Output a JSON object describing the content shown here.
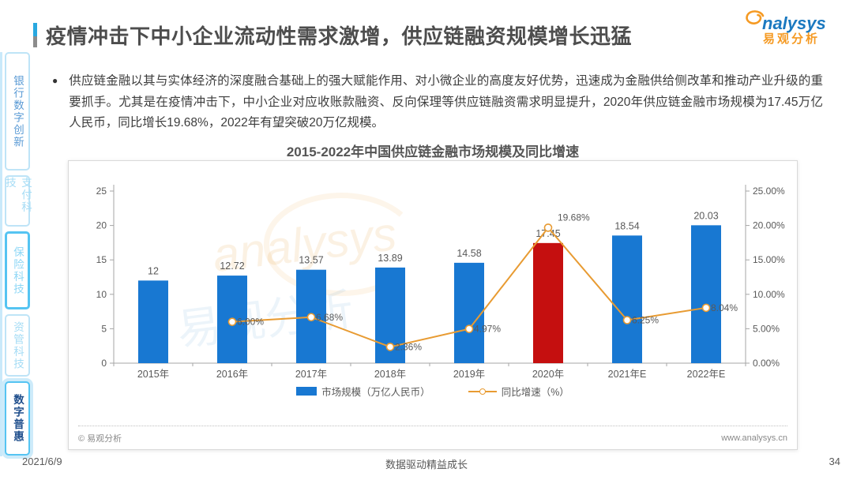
{
  "page": {
    "title": "疫情冲击下中小企业流动性需求激增，供应链融资规模增长迅猛",
    "bullet_text": "供应链金融以其与实体经济的深度融合基础上的强大赋能作用、对小微企业的高度友好优势，迅速成为金融供给侧改革和推动产业升级的重要抓手。尤其是在疫情冲击下，中小企业对应收账款融资、反向保理等供应链融资需求明显提升，2020年供应链金融市场规模为17.45万亿人民币，同比增长19.68%，2022年有望突破20万亿规模。",
    "logo": {
      "brand_latin": "nalysys",
      "brand_cn": "易观分析"
    },
    "chart_footer": {
      "copyright": "© 易观分析",
      "website": "www.analysys.cn"
    },
    "footer": {
      "date": "2021/6/9",
      "slogan": "数据驱动精益成长",
      "page_number": "34"
    }
  },
  "sidebar": {
    "items": [
      {
        "label": "银行数字创新",
        "state": "normal"
      },
      {
        "label": "支付科技",
        "state": "muted"
      },
      {
        "label": "保险科技",
        "state": "highlight"
      },
      {
        "label": "资管科技",
        "state": "muted"
      },
      {
        "label": "数字普惠",
        "state": "active"
      }
    ]
  },
  "chart_data": {
    "type": "bar",
    "subtype": "bar+line combo",
    "title": "2015-2022年中国供应链金融市场规模及同比增速",
    "categories": [
      "2015年",
      "2016年",
      "2017年",
      "2018年",
      "2019年",
      "2020年",
      "2021年E",
      "2022年E"
    ],
    "series": [
      {
        "name": "市场规模（万亿人民币）",
        "type": "bar",
        "values": [
          12,
          12.72,
          13.57,
          13.89,
          14.58,
          17.45,
          18.54,
          20.03
        ],
        "labels": [
          "12",
          "12.72",
          "13.57",
          "13.89",
          "14.58",
          "17.45",
          "18.54",
          "20.03"
        ]
      },
      {
        "name": "同比增速（%）",
        "type": "line",
        "values": [
          null,
          6.0,
          6.68,
          2.36,
          4.97,
          19.68,
          6.25,
          8.04
        ],
        "labels": [
          "",
          "6.00%",
          "6.68%",
          "2.36%",
          "4.97%",
          "19.68%",
          "6.25%",
          "8.04%"
        ]
      }
    ],
    "left_axis": {
      "ticks": [
        "25",
        "20",
        "15",
        "10",
        "5",
        "0"
      ],
      "min": 0,
      "max": 25
    },
    "right_axis": {
      "ticks": [
        "25.00%",
        "20.00%",
        "15.00%",
        "10.00%",
        "5.00%",
        "0.00%"
      ],
      "min": 0,
      "max": 25
    },
    "highlight_index": 5,
    "colors": {
      "bar": "#1878D2",
      "bar_highlight": "#C50F0F",
      "line": "#E89B32",
      "axis": "#A6A6A6",
      "label": "#595959"
    },
    "legend": [
      {
        "label": "市场规模（万亿人民币）",
        "swatch": "bar"
      },
      {
        "label": "同比增速（%）",
        "swatch": "line"
      }
    ],
    "grid": false,
    "legend_position": "bottom",
    "watermark": {
      "latin": "analysys",
      "cn": "易观分析"
    }
  }
}
